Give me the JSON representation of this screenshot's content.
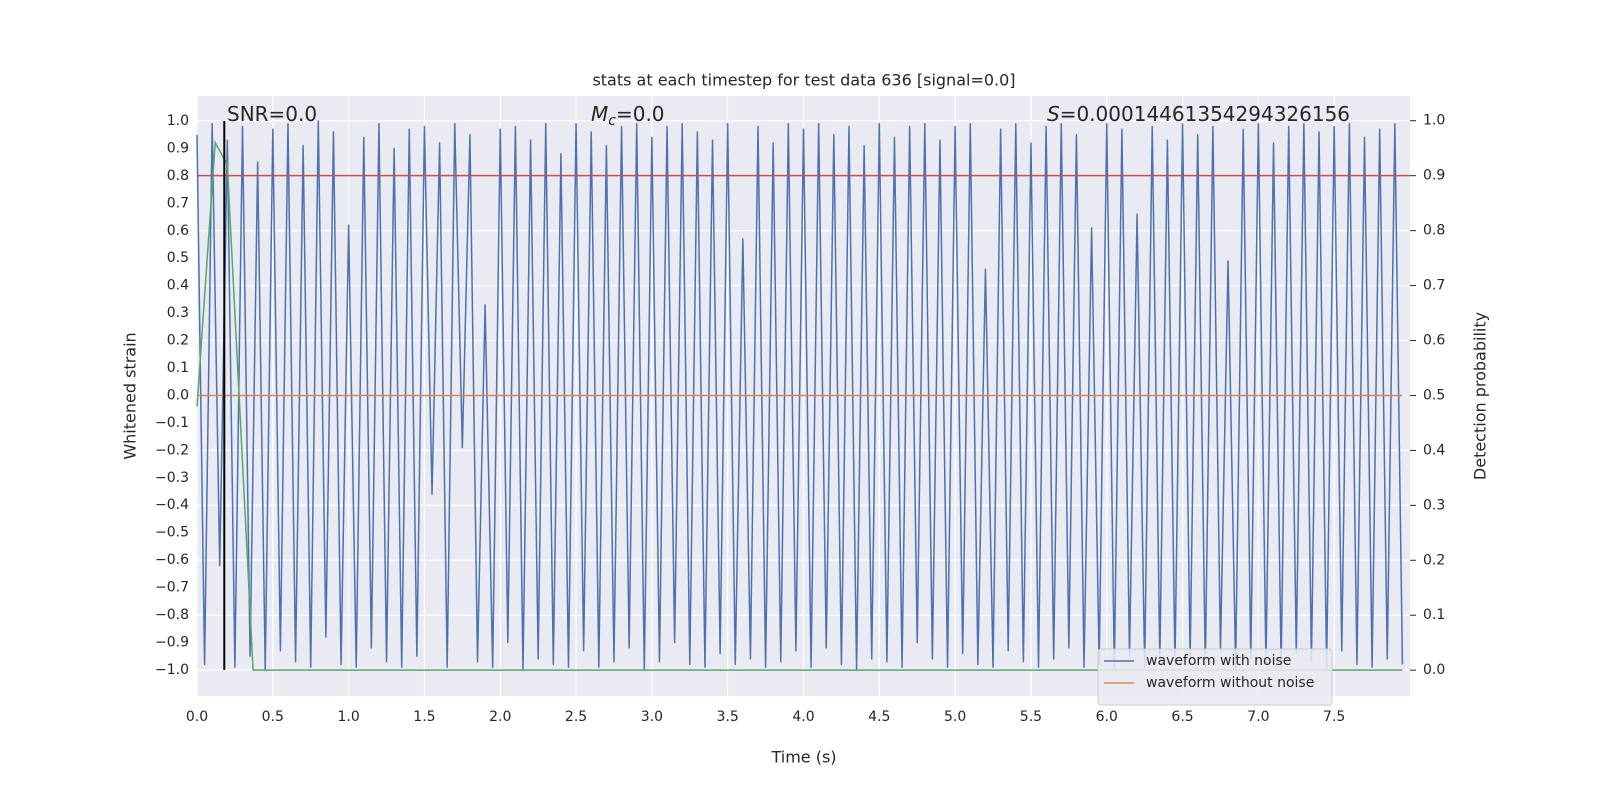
{
  "chart_data": {
    "type": "line",
    "title": "stats at each timestep for test data 636 [signal=0.0]",
    "xlabel": "Time (s)",
    "ylabel": "Whitened strain",
    "y2label": "Detection probability",
    "xlim": [
      0,
      8
    ],
    "ylim": [
      -1.095,
      1.091
    ],
    "y2lim": [
      -0.047,
      1.045
    ],
    "grid": true,
    "legend": "lower right",
    "xticks": [
      {
        "value": 0,
        "label": "0.0"
      },
      {
        "value": 0.5,
        "label": "0.5"
      },
      {
        "value": 1,
        "label": "1.0"
      },
      {
        "value": 1.5,
        "label": "1.5"
      },
      {
        "value": 2,
        "label": "2.0"
      },
      {
        "value": 2.5,
        "label": "2.5"
      },
      {
        "value": 3,
        "label": "3.0"
      },
      {
        "value": 3.5,
        "label": "3.5"
      },
      {
        "value": 4,
        "label": "4.0"
      },
      {
        "value": 4.5,
        "label": "4.5"
      },
      {
        "value": 5,
        "label": "5.0"
      },
      {
        "value": 5.5,
        "label": "5.5"
      },
      {
        "value": 6,
        "label": "6.0"
      },
      {
        "value": 6.5,
        "label": "6.5"
      },
      {
        "value": 7,
        "label": "7.0"
      },
      {
        "value": 7.5,
        "label": "7.5"
      }
    ],
    "yticks": [
      {
        "value": -1,
        "label": "−1.0"
      },
      {
        "value": -0.9,
        "label": "−0.9"
      },
      {
        "value": -0.8,
        "label": "−0.8"
      },
      {
        "value": -0.7,
        "label": "−0.7"
      },
      {
        "value": -0.6,
        "label": "−0.6"
      },
      {
        "value": -0.5,
        "label": "−0.5"
      },
      {
        "value": -0.4,
        "label": "−0.4"
      },
      {
        "value": -0.3,
        "label": "−0.3"
      },
      {
        "value": -0.2,
        "label": "−0.2"
      },
      {
        "value": -0.1,
        "label": "−0.1"
      },
      {
        "value": 0,
        "label": "0.0"
      },
      {
        "value": 0.1,
        "label": "0.1"
      },
      {
        "value": 0.2,
        "label": "0.2"
      },
      {
        "value": 0.3,
        "label": "0.3"
      },
      {
        "value": 0.4,
        "label": "0.4"
      },
      {
        "value": 0.5,
        "label": "0.5"
      },
      {
        "value": 0.6,
        "label": "0.6"
      },
      {
        "value": 0.7,
        "label": "0.7"
      },
      {
        "value": 0.8,
        "label": "0.8"
      },
      {
        "value": 0.9,
        "label": "0.9"
      },
      {
        "value": 1,
        "label": "1.0"
      }
    ],
    "y2ticks": [
      {
        "value": 0,
        "label": "0.0"
      },
      {
        "value": 0.1,
        "label": "0.1"
      },
      {
        "value": 0.2,
        "label": "0.2"
      },
      {
        "value": 0.3,
        "label": "0.3"
      },
      {
        "value": 0.4,
        "label": "0.4"
      },
      {
        "value": 0.5,
        "label": "0.5"
      },
      {
        "value": 0.6,
        "label": "0.6"
      },
      {
        "value": 0.7,
        "label": "0.7"
      },
      {
        "value": 0.8,
        "label": "0.8"
      },
      {
        "value": 0.9,
        "label": "0.9"
      },
      {
        "value": 1,
        "label": "1.0"
      }
    ],
    "series": [
      {
        "name": "waveform with noise",
        "color": "#4c72b0",
        "x": [
          0,
          0.05,
          0.1,
          0.15,
          0.2,
          0.25,
          0.3,
          0.35,
          0.4,
          0.45,
          0.5,
          0.55,
          0.6,
          0.65,
          0.7,
          0.75,
          0.8,
          0.85,
          0.9,
          0.95,
          1,
          1.05,
          1.1,
          1.15,
          1.2,
          1.25,
          1.3,
          1.35,
          1.4,
          1.45,
          1.5,
          1.55,
          1.6,
          1.65,
          1.7,
          1.75,
          1.8,
          1.85,
          1.9,
          1.95,
          2,
          2.05,
          2.1,
          2.15,
          2.2,
          2.25,
          2.3,
          2.35,
          2.4,
          2.45,
          2.5,
          2.55,
          2.6,
          2.65,
          2.7,
          2.75,
          2.8,
          2.85,
          2.9,
          2.95,
          3,
          3.05,
          3.1,
          3.15,
          3.2,
          3.25,
          3.3,
          3.35,
          3.4,
          3.45,
          3.5,
          3.55,
          3.6,
          3.65,
          3.7,
          3.75,
          3.8,
          3.85,
          3.9,
          3.95,
          4,
          4.05,
          4.1,
          4.15,
          4.2,
          4.25,
          4.3,
          4.35,
          4.4,
          4.45,
          4.5,
          4.55,
          4.6,
          4.65,
          4.7,
          4.75,
          4.8,
          4.85,
          4.9,
          4.95,
          5,
          5.05,
          5.1,
          5.15,
          5.2,
          5.25,
          5.3,
          5.35,
          5.4,
          5.45,
          5.5,
          5.55,
          5.6,
          5.65,
          5.7,
          5.75,
          5.8,
          5.85,
          5.9,
          5.95,
          6,
          6.05,
          6.1,
          6.15,
          6.2,
          6.25,
          6.3,
          6.35,
          6.4,
          6.45,
          6.5,
          6.55,
          6.6,
          6.65,
          6.7,
          6.75,
          6.8,
          6.85,
          6.9,
          6.95,
          7,
          7.05,
          7.1,
          7.15,
          7.2,
          7.25,
          7.3,
          7.35,
          7.4,
          7.45,
          7.5,
          7.55,
          7.6,
          7.65,
          7.7,
          7.75,
          7.8,
          7.85,
          7.9,
          7.95
        ],
        "values": [
          0.95,
          -0.98,
          0.99,
          -0.62,
          0.93,
          -0.99,
          0.98,
          -0.95,
          0.85,
          -1.0,
          0.97,
          -0.93,
          0.99,
          -0.97,
          0.91,
          -0.99,
          1.0,
          -0.88,
          0.96,
          -0.98,
          0.62,
          -0.99,
          0.94,
          -0.92,
          0.99,
          -0.97,
          0.9,
          -0.99,
          0.97,
          -0.95,
          0.98,
          -0.36,
          0.92,
          -0.99,
          0.99,
          -0.19,
          0.95,
          -0.97,
          0.33,
          -0.99,
          0.97,
          -0.9,
          0.98,
          -1.0,
          0.93,
          -0.96,
          0.99,
          -0.98,
          0.88,
          -0.99,
          0.99,
          -0.93,
          0.96,
          -0.99,
          0.91,
          -0.97,
          0.98,
          -0.92,
          0.99,
          -1.0,
          0.94,
          -0.97,
          0.98,
          -0.9,
          0.99,
          -0.98,
          0.96,
          -0.99,
          0.93,
          -0.94,
          0.99,
          -0.98,
          0.57,
          -0.96,
          0.98,
          -0.99,
          0.92,
          -0.97,
          0.99,
          -0.93,
          0.97,
          -0.99,
          0.99,
          -0.92,
          0.95,
          -0.98,
          0.98,
          -1.0,
          0.91,
          -0.96,
          0.99,
          -0.97,
          0.94,
          -0.99,
          0.98,
          -0.9,
          0.99,
          -0.96,
          0.93,
          -0.99,
          0.98,
          -0.94,
          0.99,
          -0.98,
          0.46,
          -0.99,
          0.97,
          -0.93,
          0.99,
          -0.97,
          0.92,
          -0.99,
          0.98,
          -0.96,
          0.99,
          -0.92,
          0.95,
          -0.99,
          0.61,
          -0.98,
          0.99,
          -1.0,
          0.97,
          -0.95,
          0.66,
          -0.99,
          0.98,
          -0.97,
          0.93,
          -0.98,
          0.99,
          -0.96,
          0.95,
          -0.99,
          0.98,
          -0.93,
          0.49,
          -0.99,
          0.97,
          -0.96,
          0.99,
          -0.98,
          0.92,
          -0.99,
          0.98,
          -0.94,
          0.99,
          -0.97,
          0.96,
          -0.99,
          0.98,
          -0.93,
          0.99,
          -0.98,
          0.94,
          -0.99,
          0.97,
          -0.96,
          0.99,
          -0.98
        ]
      },
      {
        "name": "waveform without noise",
        "color": "#dd8452",
        "x": [
          0,
          7.95
        ],
        "values": [
          0,
          0
        ]
      }
    ],
    "probability": {
      "color": "#55a868",
      "axis": "y2",
      "x": [
        0,
        0.12,
        0.2,
        0.37,
        7.95
      ],
      "values": [
        0.48,
        0.96,
        0.92,
        0,
        0
      ]
    },
    "threshold": {
      "value": 0.9,
      "axis": "y2",
      "color": "#c44e52"
    },
    "marker": {
      "value": 0.18,
      "color": "#000000"
    },
    "annotations": {
      "snr": {
        "text": "SNR=0.0"
      },
      "mc": {
        "symbol": "M",
        "subscript": "c",
        "text": "=0.0"
      },
      "s": {
        "symbol": "S",
        "text": "=0.00014461354294326156"
      }
    }
  }
}
